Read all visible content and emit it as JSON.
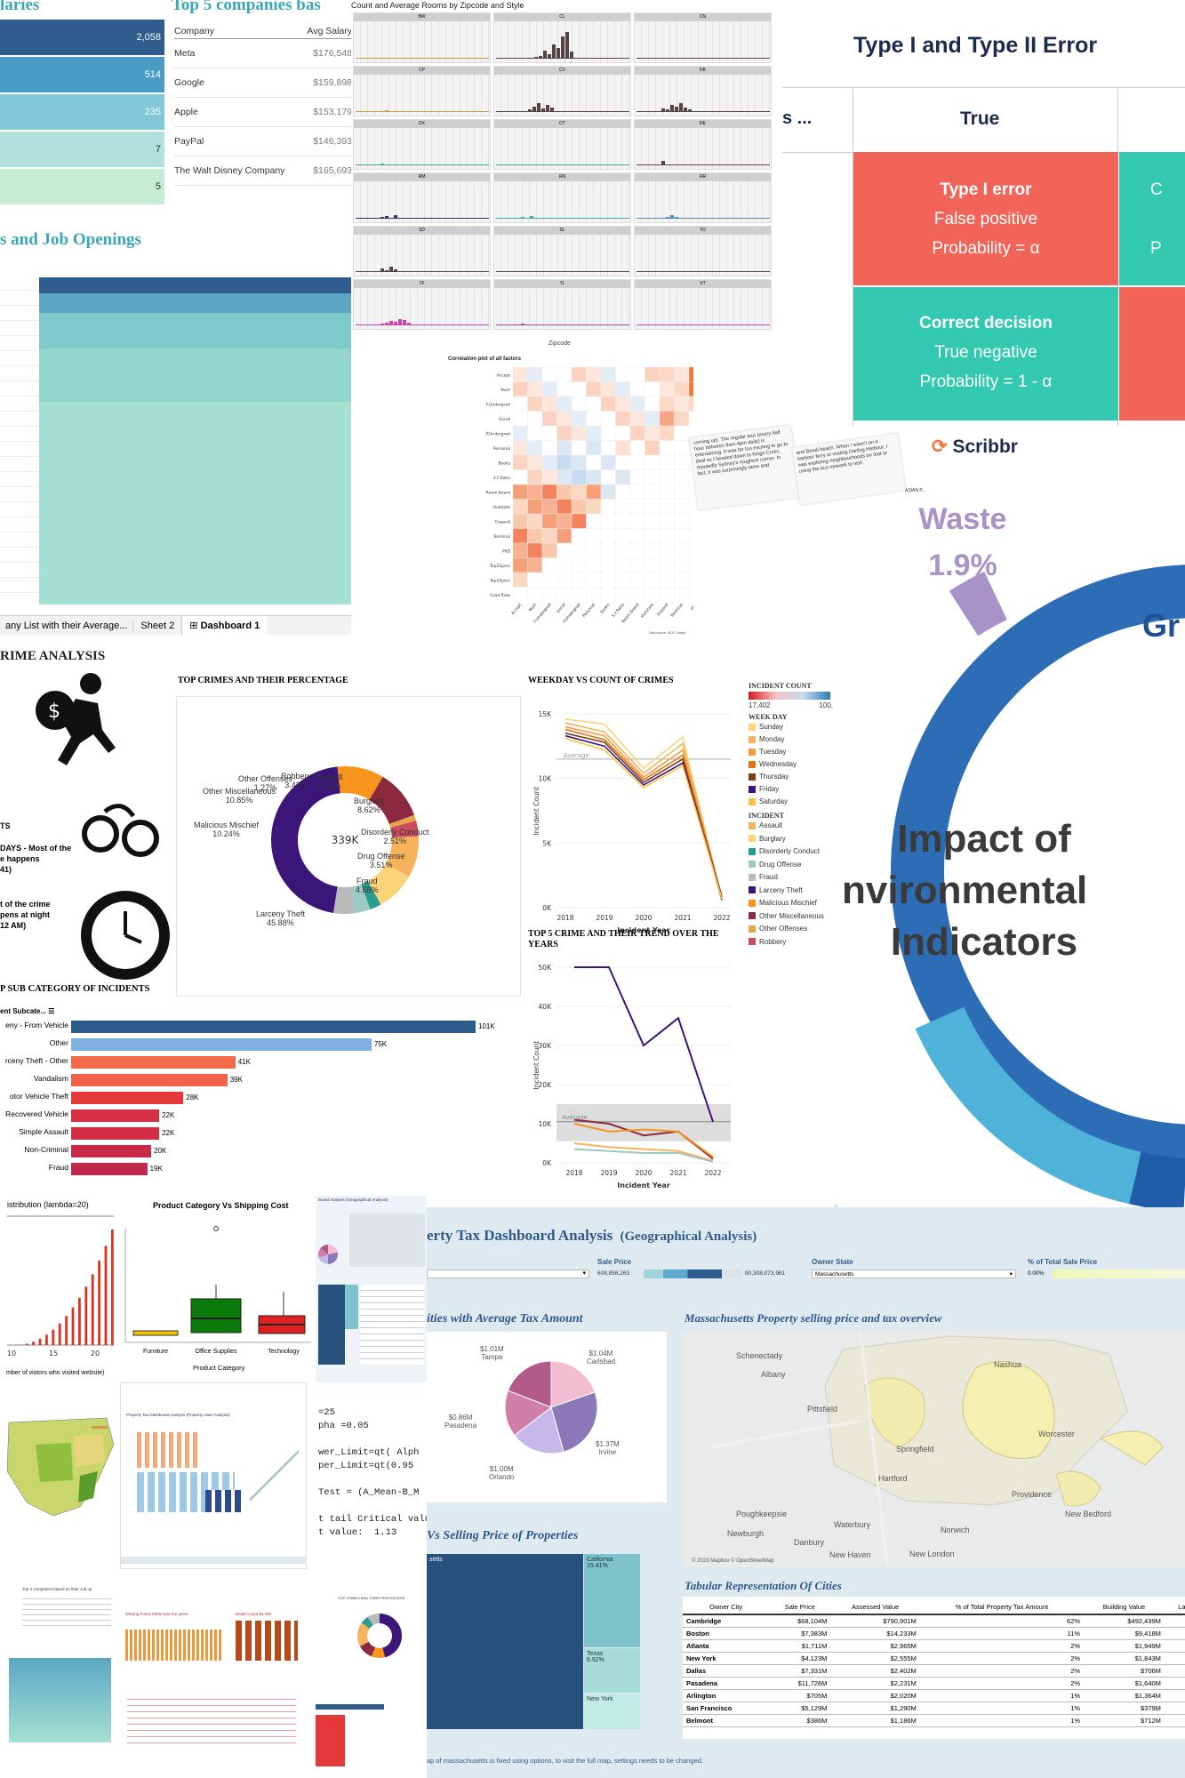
{
  "salaries": {
    "title": "laries",
    "bars": [
      {
        "value": "2,058",
        "color": "#2e5d8e",
        "w": 1.0
      },
      {
        "value": "514",
        "color": "#4a9cc4",
        "w": 1.0
      },
      {
        "value": "235",
        "color": "#82c8d8",
        "w": 1.0
      },
      {
        "value": "7",
        "color": "#b3e0dc",
        "w": 1.0
      },
      {
        "value": "5",
        "color": "#c6ecd6",
        "w": 1.0
      }
    ]
  },
  "top5": {
    "title": "Top 5 companies bas",
    "col_company": "Company",
    "col_salary": "Avg Salary",
    "rows": [
      {
        "company": "Meta",
        "salary": "$176,548"
      },
      {
        "company": "Google",
        "salary": "$159,898"
      },
      {
        "company": "Apple",
        "salary": "$153,179"
      },
      {
        "company": "PayPal",
        "salary": "$146,393"
      },
      {
        "company": "The Walt Disney Company",
        "salary": "$165,693"
      }
    ]
  },
  "jobs": {
    "title": "s and Job Openings",
    "tabs": [
      "any List with their Average...",
      "Sheet 2",
      "Dashboard 1"
    ]
  },
  "rooms": {
    "title": "Count and Average Rooms by Zipcode and Style",
    "panels": [
      "BW",
      "CL",
      "CN",
      "CP",
      "CV",
      "DK",
      "DX",
      "OT",
      "RE",
      "RM",
      "RN",
      "RR",
      "SD",
      "SL",
      "TO",
      "TF",
      "TL",
      "VT"
    ],
    "xlabel": "Zipcode"
  },
  "error": {
    "title": "Type I and Type II Error",
    "col_left": "s ...",
    "col_true": "True",
    "cell1": [
      "Type I error",
      "False positive",
      "Probability = α"
    ],
    "cell2": [
      "Correct decision",
      "True negative",
      "Probability = 1 - α"
    ],
    "cell_right1": [
      "C",
      "P"
    ],
    "brand": "Scribbr",
    "brand_color": "#f4743b",
    "red": "#f26457",
    "teal": "#33c9b0"
  },
  "corr": {
    "title": "Correlation plot of all factors",
    "rows": [
      "Accept",
      "Num",
      "F.Undergrad",
      "Enroll",
      "P.Undergrad",
      "Personal",
      "Books",
      "S.F.Ratio",
      "Room.Board",
      "Outstate",
      "Expend",
      "Terminal",
      "PhD",
      "Top25perc",
      "Top10perc",
      "Grad.Rate"
    ],
    "data_label": "Data source: ISLR College"
  },
  "notes": {
    "left": "coming up). The regular tour (every half hour between 9am-4pm daily) is entertaining. It was far too exciting to go to deal so I headed down to Kings Cross, reputedly Sydney's roughest corner. In fact, it was surprisingly tame and",
    "right": "and Bondi beach. When I wasn't on a harbour ferry or visiting Darling Harbour, I was exploring neighbourhoods on foot or using the bus network to visit",
    "foot": "ASIAN P..."
  },
  "waste": {
    "label": "Waste",
    "pct": "1.9%",
    "big": "Gr",
    "impact": [
      "Impact of",
      "nvironmental",
      "Indicators"
    ]
  },
  "crime": {
    "title": "RIME ANALYSIS",
    "note_ts": "TS",
    "note1": "DAYS - Most of the\ne happens\n41)",
    "note2": "t of the crime\npens at night\n12 AM)",
    "top_title": "TOP CRIMES AND THEIR PERCENTAGE",
    "center": "339K",
    "slices": [
      {
        "label": "Larceny Theft",
        "pct": "45.88%",
        "value": 45.88,
        "color": "#3b1578"
      },
      {
        "label": "Malicious Mischief",
        "pct": "10.24%",
        "value": 10.24,
        "color": "#f7941d"
      },
      {
        "label": "Other Miscellaneous",
        "pct": "10.85%",
        "value": 10.85,
        "color": "#8b2a3f"
      },
      {
        "label": "Other Offenses",
        "pct": "1.27%",
        "value": 1.27,
        "color": "#e6a54a"
      },
      {
        "label": "Robbery",
        "pct": "3.43%",
        "value": 3.43,
        "color": "#c84d5f"
      },
      {
        "label": "Assault",
        "pct": "9.11%",
        "value": 9.11,
        "color": "#f6b35b"
      },
      {
        "label": "Burglary",
        "pct": "8.62%",
        "value": 8.62,
        "color": "#fdd37a"
      },
      {
        "label": "Disorderly Conduct",
        "pct": "2.51%",
        "value": 2.51,
        "color": "#2a9d8f"
      },
      {
        "label": "Drug Offense",
        "pct": "3.51%",
        "value": 3.51,
        "color": "#9ec9c2"
      },
      {
        "label": "Fraud",
        "pct": "4.58%",
        "value": 4.58,
        "color": "#b9b9b9"
      }
    ],
    "weekday_title": "WEEKDAY VS COUNT OF CRIMES",
    "weekday_years": [
      "2018",
      "2019",
      "2020",
      "2021",
      "2022"
    ],
    "weekday_y": [
      "15K",
      "10K",
      "5K",
      "0K"
    ],
    "weekday_ylabel": "Incident Count",
    "weekday_xlabel": "Incident Year",
    "avg": "Average",
    "trend_title": "TOP 5 CRIME AND THEIR TREND OVER THE YEARS",
    "trend_y": [
      "50K",
      "40K",
      "30K",
      "20K",
      "10K",
      "0K"
    ],
    "legend_count": "INCIDENT COUNT",
    "legend_min": "17,402",
    "legend_max": "100,",
    "legend_week": "WEEK DAY",
    "days": [
      "Sunday",
      "Monday",
      "Tuesday",
      "Wednesday",
      "Thursday",
      "Friday",
      "Saturday"
    ],
    "day_colors": [
      "#fdd37a",
      "#f6b35b",
      "#f39c3d",
      "#e0741a",
      "#7a3e1c",
      "#3b1578",
      "#f7c244"
    ],
    "legend_incident": "INCIDENT",
    "incidents": [
      "Assault",
      "Burglary",
      "Disorderly Conduct",
      "Drug Offense",
      "Fraud",
      "Larceny Theft",
      "Malicious Mischief",
      "Other Miscellaneous",
      "Other Offenses",
      "Robbery"
    ],
    "incident_colors": [
      "#f6b35b",
      "#fdd37a",
      "#2a9d8f",
      "#9ec9c2",
      "#b9b9b9",
      "#3b1578",
      "#f7941d",
      "#8b2a3f",
      "#e6a54a",
      "#c84d5f"
    ],
    "sub_title": "P SUB CATEGORY OF INCIDENTS",
    "sub_header": "ent Subcate...",
    "subs": [
      {
        "label": "eny - From Vehicle",
        "value": 101,
        "text": "101K",
        "color": "#2b5c8c"
      },
      {
        "label": "Other",
        "value": 75,
        "text": "75K",
        "color": "#7fb1e0"
      },
      {
        "label": "rceny Theft - Other",
        "value": 41,
        "text": "41K",
        "color": "#f26b4a"
      },
      {
        "label": "Vandalism",
        "value": 39,
        "text": "39K",
        "color": "#f0604a"
      },
      {
        "label": "otor Vehicle Theft",
        "value": 28,
        "text": "28K",
        "color": "#e5383b"
      },
      {
        "label": "Recovered Vehicle",
        "value": 22,
        "text": "22K",
        "color": "#d62f41"
      },
      {
        "label": "Simple Assault",
        "value": 22,
        "text": "22K",
        "color": "#d12d45"
      },
      {
        "label": "Non-Criminal",
        "value": 20,
        "text": "20K",
        "color": "#c92a4a"
      },
      {
        "label": "Fraud",
        "value": 19,
        "text": "19K",
        "color": "#c1284d"
      }
    ]
  },
  "poisson": {
    "title": "istribution (lambda=20)",
    "x": [
      "10",
      "15",
      "20"
    ],
    "xlabel": "mber of vistors who visited website)"
  },
  "box": {
    "title": "Product Category Vs Shipping Cost",
    "cats": [
      "Furniture",
      "Office Supplies",
      "Technology"
    ],
    "xlabel": "Product Category"
  },
  "rcode": {
    "lines": [
      "=25",
      "pha =0.05",
      "",
      "wer_Limit=qt( Alph",
      "per_Limit=qt(0.95",
      "",
      "Test = (A_Mean-B_M",
      "",
      "t tail Critical value : 2.",
      "t value:  1.13"
    ]
  },
  "tax": {
    "title": "erty Tax Dashboard Analysis",
    "subtitle": "(Geographical Analysis)",
    "sale_price": "Sale Price",
    "range_lo": "608,858,263",
    "range_hi": "80,308,073,961",
    "owner_state": "Owner State",
    "owner_value": "Massachusetts",
    "pct_total": "% of Total Sale Price",
    "pct_value": "0.00%",
    "cities_title": "ities with Average Tax Amount",
    "pie": [
      {
        "city": "Carlsbad",
        "amt": "$1.04M",
        "value": 1.04,
        "color": "#f4bcd0"
      },
      {
        "city": "Irvine",
        "amt": "$1.37M",
        "value": 1.37,
        "color": "#8a78b8"
      },
      {
        "city": "Orlando",
        "amt": "$1.00M",
        "value": 1.0,
        "color": "#c7b8ea"
      },
      {
        "city": "Pasadena",
        "amt": "$0.86M",
        "value": 0.86,
        "color": "#cf7da9"
      },
      {
        "city": "Tampa",
        "amt": "$1.01M",
        "value": 1.01,
        "color": "#b25a8a"
      }
    ],
    "map_title": "Massachusetts Property selling price and tax overview",
    "map_places": [
      "Schenectady",
      "Albany",
      "Pittsfield",
      "Springfield",
      "Hartford",
      "Poughkeepsie",
      "Waterbury",
      "Norwich",
      "Newburgh",
      "Danbury",
      "New Haven",
      "New London",
      "Nashua",
      "Providence",
      "New Bedford",
      "Worcester"
    ],
    "map_credit": "© 2023 Mapbox © OpenStreetMap",
    "tree_title": "Vs Selling Price of Properties",
    "tree": [
      {
        "label": "setts",
        "color": "#27527e"
      },
      {
        "label": "California\n15.41%",
        "color": "#7fc4cc"
      },
      {
        "label": "Texas\n6.92%",
        "color": "#a8dcd9"
      },
      {
        "label": "New York",
        "color": "#c3ebe3"
      }
    ],
    "tab_title": "Tabular Representation Of Cities",
    "tab_cols": [
      "Owner City",
      "Sale Price",
      "Assessed Value",
      "% of Total Property Tax Amount",
      "Building Value",
      "Land Va"
    ],
    "tab_rows": [
      [
        "Cambridge",
        "$68,104M",
        "$790,901M",
        "62%",
        "$492,439M",
        "$298,4"
      ],
      [
        "Boston",
        "$7,383M",
        "$14,233M",
        "11%",
        "$9,418M",
        "$4,81"
      ],
      [
        "Atlanta",
        "$1,711M",
        "$2,965M",
        "2%",
        "$1,949M",
        "$1,01"
      ],
      [
        "New York",
        "$4,123M",
        "$2,555M",
        "2%",
        "$1,843M",
        "$713"
      ],
      [
        "Dallas",
        "$7,331M",
        "$2,402M",
        "2%",
        "$706M",
        "$1,69"
      ],
      [
        "Pasadena",
        "$11,726M",
        "$2,231M",
        "2%",
        "$1,640M",
        "$591"
      ],
      [
        "Arlington",
        "$705M",
        "$2,020M",
        "1%",
        "$1,364M",
        "$656"
      ],
      [
        "San Francisco",
        "$5,129M",
        "$1,290M",
        "1%",
        "$379M",
        "$911"
      ],
      [
        "Belmont",
        "$386M",
        "$1,186M",
        "1%",
        "$712M",
        "$473"
      ]
    ],
    "footer": "ap of massachusetts is fixed using options, to visit the full map, settings needs to be changed."
  },
  "mini": {
    "geo_title": "Board Analysis (Geographical Analysis)",
    "tax_title": "Property Tax Dashboard Analysis (Property class Analysis)",
    "top_jobs": "Top 4 companies based on their Job op",
    "crime_pct": "TOP CRIMES AND THEIR PERCENTAGE",
    "missing": "Missing Points NEW over the years",
    "death": "Death Count By WD"
  }
}
